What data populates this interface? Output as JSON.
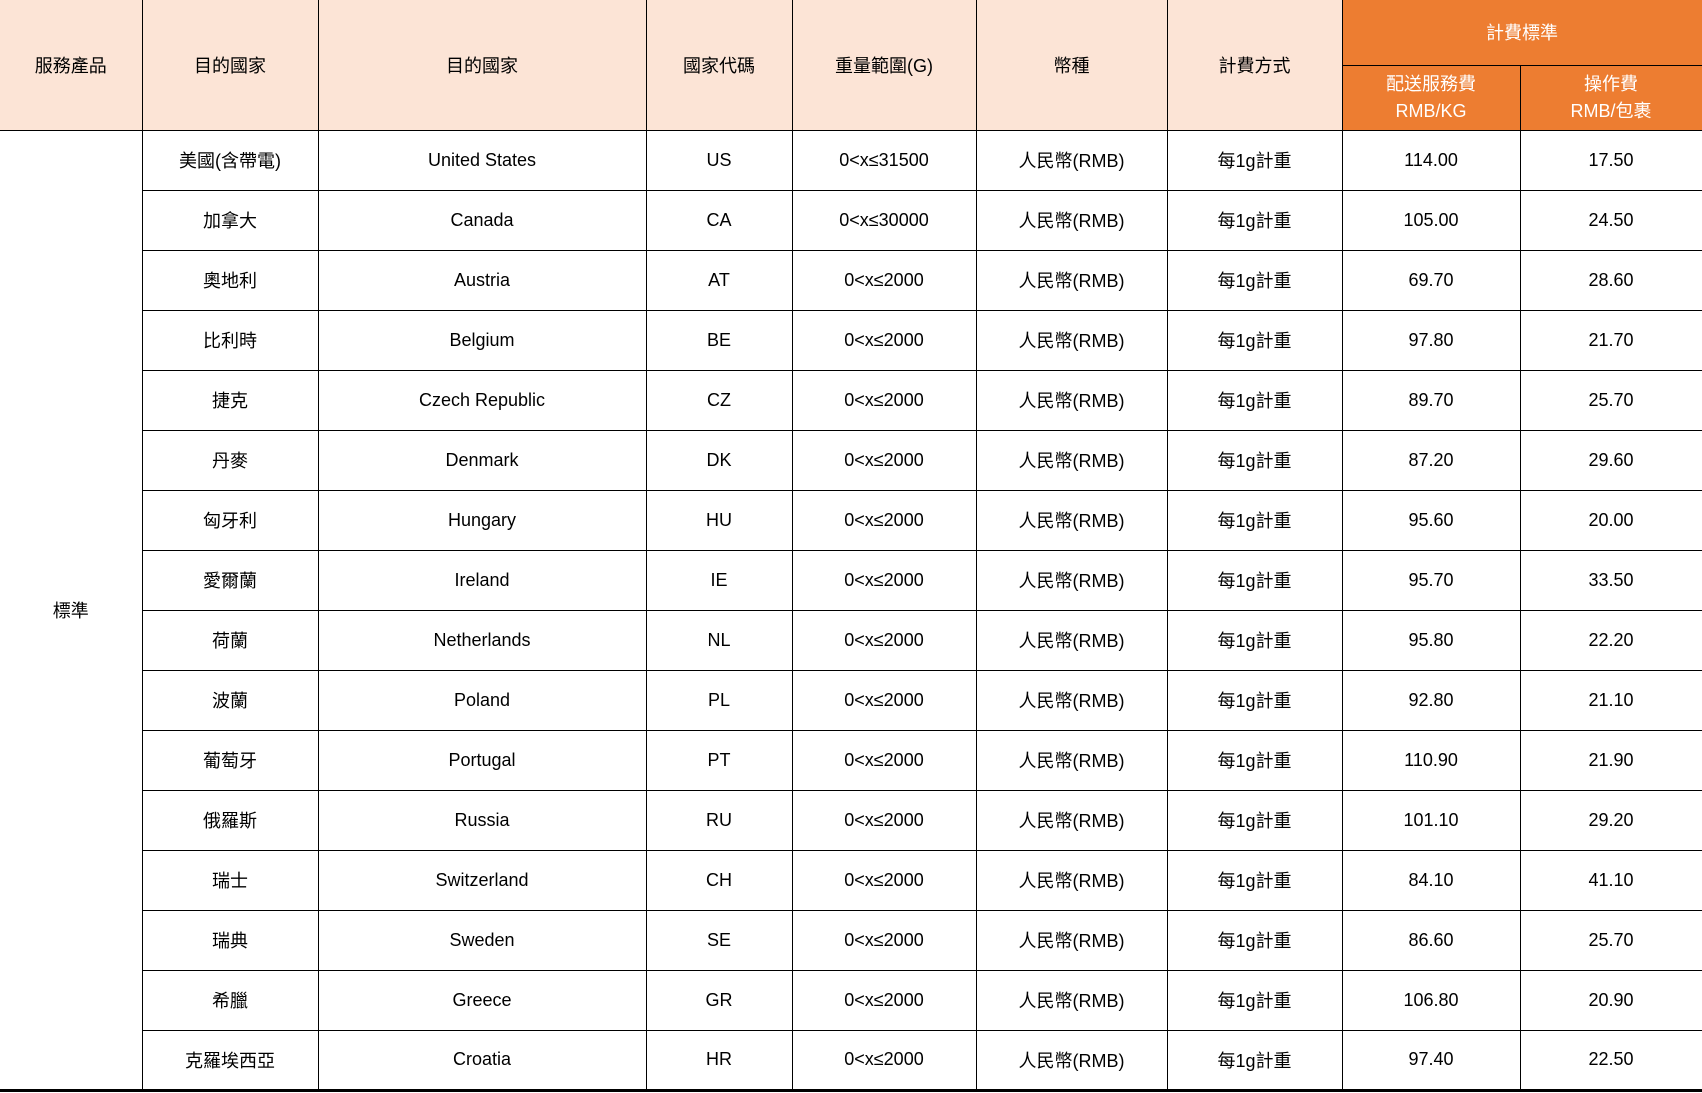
{
  "table": {
    "headers": {
      "service_product": "服務產品",
      "dest_country_cn": "目的國家",
      "dest_country_en": "目的國家",
      "country_code": "國家代碼",
      "weight_range": "重量範圍(G)",
      "currency": "幣種",
      "billing_method": "計費方式",
      "billing_standard": "計費標準",
      "delivery_fee_line1": "配送服務費",
      "delivery_fee_line2": "RMB/KG",
      "handling_fee_line1": "操作費",
      "handling_fee_line2": "RMB/包裹"
    },
    "service_product_value": "標準",
    "rows": [
      {
        "country_cn": "美國(含帶電)",
        "country_en": "United States",
        "code": "US",
        "weight": "0<x≤31500",
        "currency": "人民幣(RMB)",
        "billing": "每1g計重",
        "delivery_fee": "114.00",
        "handling_fee": "17.50"
      },
      {
        "country_cn": "加拿大",
        "country_en": "Canada",
        "code": "CA",
        "weight": "0<x≤30000",
        "currency": "人民幣(RMB)",
        "billing": "每1g計重",
        "delivery_fee": "105.00",
        "handling_fee": "24.50"
      },
      {
        "country_cn": "奧地利",
        "country_en": "Austria",
        "code": "AT",
        "weight": "0<x≤2000",
        "currency": "人民幣(RMB)",
        "billing": "每1g計重",
        "delivery_fee": "69.70",
        "handling_fee": "28.60"
      },
      {
        "country_cn": "比利時",
        "country_en": "Belgium",
        "code": "BE",
        "weight": "0<x≤2000",
        "currency": "人民幣(RMB)",
        "billing": "每1g計重",
        "delivery_fee": "97.80",
        "handling_fee": "21.70"
      },
      {
        "country_cn": "捷克",
        "country_en": "Czech Republic",
        "code": "CZ",
        "weight": "0<x≤2000",
        "currency": "人民幣(RMB)",
        "billing": "每1g計重",
        "delivery_fee": "89.70",
        "handling_fee": "25.70"
      },
      {
        "country_cn": "丹麥",
        "country_en": "Denmark",
        "code": "DK",
        "weight": "0<x≤2000",
        "currency": "人民幣(RMB)",
        "billing": "每1g計重",
        "delivery_fee": "87.20",
        "handling_fee": "29.60"
      },
      {
        "country_cn": "匈牙利",
        "country_en": "Hungary",
        "code": "HU",
        "weight": "0<x≤2000",
        "currency": "人民幣(RMB)",
        "billing": "每1g計重",
        "delivery_fee": "95.60",
        "handling_fee": "20.00"
      },
      {
        "country_cn": "愛爾蘭",
        "country_en": "Ireland",
        "code": "IE",
        "weight": "0<x≤2000",
        "currency": "人民幣(RMB)",
        "billing": "每1g計重",
        "delivery_fee": "95.70",
        "handling_fee": "33.50"
      },
      {
        "country_cn": "荷蘭",
        "country_en": "Netherlands",
        "code": "NL",
        "weight": "0<x≤2000",
        "currency": "人民幣(RMB)",
        "billing": "每1g計重",
        "delivery_fee": "95.80",
        "handling_fee": "22.20"
      },
      {
        "country_cn": "波蘭",
        "country_en": "Poland",
        "code": "PL",
        "weight": "0<x≤2000",
        "currency": "人民幣(RMB)",
        "billing": "每1g計重",
        "delivery_fee": "92.80",
        "handling_fee": "21.10"
      },
      {
        "country_cn": "葡萄牙",
        "country_en": "Portugal",
        "code": "PT",
        "weight": "0<x≤2000",
        "currency": "人民幣(RMB)",
        "billing": "每1g計重",
        "delivery_fee": "110.90",
        "handling_fee": "21.90"
      },
      {
        "country_cn": "俄羅斯",
        "country_en": "Russia",
        "code": "RU",
        "weight": "0<x≤2000",
        "currency": "人民幣(RMB)",
        "billing": "每1g計重",
        "delivery_fee": "101.10",
        "handling_fee": "29.20"
      },
      {
        "country_cn": "瑞士",
        "country_en": "Switzerland",
        "code": "CH",
        "weight": "0<x≤2000",
        "currency": "人民幣(RMB)",
        "billing": "每1g計重",
        "delivery_fee": "84.10",
        "handling_fee": "41.10"
      },
      {
        "country_cn": "瑞典",
        "country_en": "Sweden",
        "code": "SE",
        "weight": "0<x≤2000",
        "currency": "人民幣(RMB)",
        "billing": "每1g計重",
        "delivery_fee": "86.60",
        "handling_fee": "25.70"
      },
      {
        "country_cn": "希臘",
        "country_en": "Greece",
        "code": "GR",
        "weight": "0<x≤2000",
        "currency": "人民幣(RMB)",
        "billing": "每1g計重",
        "delivery_fee": "106.80",
        "handling_fee": "20.90"
      },
      {
        "country_cn": "克羅埃西亞",
        "country_en": "Croatia",
        "code": "HR",
        "weight": "0<x≤2000",
        "currency": "人民幣(RMB)",
        "billing": "每1g計重",
        "delivery_fee": "97.40",
        "handling_fee": "22.50"
      }
    ]
  },
  "colors": {
    "header_bg": "#FCE4D6",
    "accent_orange": "#ED7D31",
    "border": "#000000",
    "header_orange_text": "#FFFFFF",
    "text": "#000000"
  }
}
